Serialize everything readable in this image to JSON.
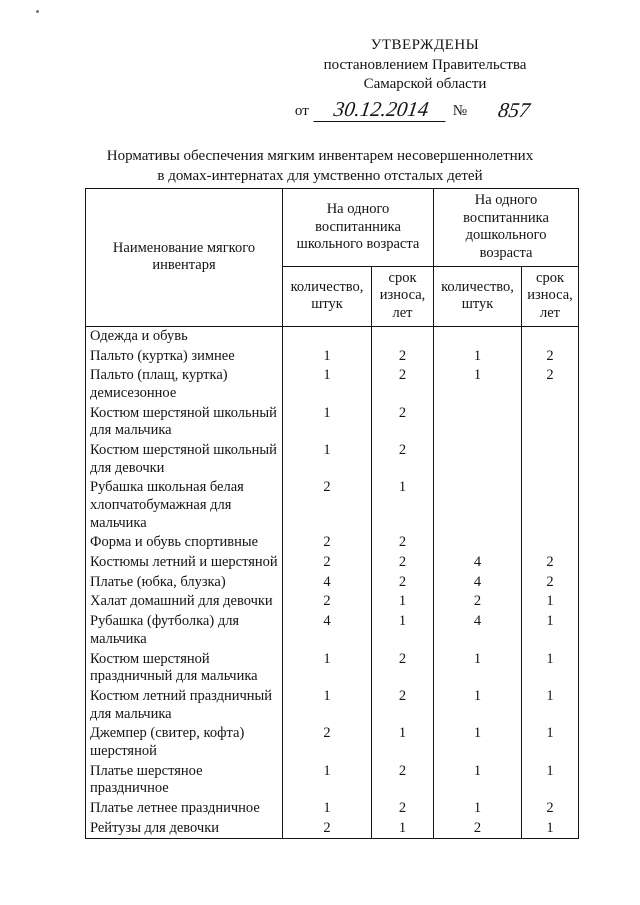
{
  "approval": {
    "line1": "УТВЕРЖДЕНЫ",
    "line2": "постановлением Правительства",
    "line3": "Самарской области",
    "ot_label": "от",
    "date": "30.12.2014",
    "no_label": "№",
    "number": "857"
  },
  "title": {
    "line1": "Нормативы обеспечения мягким инвентарем несовершеннолетних",
    "line2": "в домах-интернатах для умственно отсталых детей"
  },
  "table": {
    "col_name_header": "Наименование мягкого инвентаря",
    "group1_header": "На одного воспитанника школьного возраста",
    "group2_header": "На одного воспитанника дошкольного возраста",
    "sub_qty_header": "количество, штук",
    "sub_wear_header": "срок износа, лет",
    "rows": [
      {
        "name": "Одежда и обувь",
        "q1": "",
        "w1": "",
        "q2": "",
        "w2": ""
      },
      {
        "name": "Пальто (куртка) зимнее",
        "q1": "1",
        "w1": "2",
        "q2": "1",
        "w2": "2"
      },
      {
        "name": "Пальто (плащ, куртка) демисезонное",
        "q1": "1",
        "w1": "2",
        "q2": "1",
        "w2": "2"
      },
      {
        "name": "Костюм шерстяной школьный для мальчика",
        "q1": "1",
        "w1": "2",
        "q2": "",
        "w2": ""
      },
      {
        "name": "Костюм шерстяной школьный для девочки",
        "q1": "1",
        "w1": "2",
        "q2": "",
        "w2": ""
      },
      {
        "name": "Рубашка школьная белая хлопчатобумажная для мальчика",
        "q1": "2",
        "w1": "1",
        "q2": "",
        "w2": ""
      },
      {
        "name": "Форма и обувь спортивные",
        "q1": "2",
        "w1": "2",
        "q2": "",
        "w2": ""
      },
      {
        "name": "Костюмы летний и шерстяной",
        "q1": "2",
        "w1": "2",
        "q2": "4",
        "w2": "2"
      },
      {
        "name": "Платье (юбка, блузка)",
        "q1": "4",
        "w1": "2",
        "q2": "4",
        "w2": "2"
      },
      {
        "name": "Халат домашний для девочки",
        "q1": "2",
        "w1": "1",
        "q2": "2",
        "w2": "1"
      },
      {
        "name": "Рубашка (футболка) для мальчика",
        "q1": "4",
        "w1": "1",
        "q2": "4",
        "w2": "1"
      },
      {
        "name": "Костюм шерстяной праздничный для мальчика",
        "q1": "1",
        "w1": "2",
        "q2": "1",
        "w2": "1"
      },
      {
        "name": "Костюм летний праздничный для мальчика",
        "q1": "1",
        "w1": "2",
        "q2": "1",
        "w2": "1"
      },
      {
        "name": "Джемпер (свитер, кофта) шерстяной",
        "q1": "2",
        "w1": "1",
        "q2": "1",
        "w2": "1"
      },
      {
        "name": "Платье шерстяное праздничное",
        "q1": "1",
        "w1": "2",
        "q2": "1",
        "w2": "1"
      },
      {
        "name": "Платье летнее праздничное",
        "q1": "1",
        "w1": "2",
        "q2": "1",
        "w2": "2"
      },
      {
        "name": "Рейтузы для девочки",
        "q1": "2",
        "w1": "1",
        "q2": "2",
        "w2": "1"
      }
    ]
  }
}
